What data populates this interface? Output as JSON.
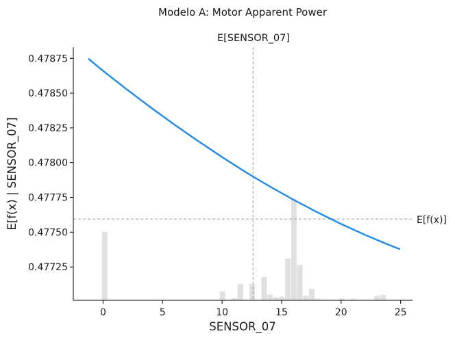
{
  "chart_data": {
    "type": "line",
    "title": "Modelo A: Motor Apparent Power",
    "subtitle": "E[SENSOR_07]",
    "xlabel": "SENSOR_07",
    "ylabel": "E[f(x) | SENSOR_07]",
    "xlim": [
      -2.5,
      26.0
    ],
    "ylim": [
      0.47701,
      0.47883
    ],
    "x_ticks": [
      0,
      5,
      10,
      15,
      20,
      25
    ],
    "y_ticks": [
      0.47725,
      0.4775,
      0.47775,
      0.478,
      0.47825,
      0.4785,
      0.47875
    ],
    "x_tick_labels": [
      "0",
      "5",
      "10",
      "15",
      "20",
      "25"
    ],
    "y_tick_labels": [
      "0.47725",
      "0.47750",
      "0.47775",
      "0.47800",
      "0.47825",
      "0.47850",
      "0.47875"
    ],
    "line": {
      "color": "#1e88e5",
      "x": [
        -1.2,
        0,
        2,
        4,
        6,
        8,
        10,
        12,
        12.6,
        14,
        16,
        18,
        20,
        22,
        24,
        24.9
      ],
      "y": [
        0.478745,
        0.47866,
        0.478526,
        0.478397,
        0.478273,
        0.478154,
        0.47804,
        0.477931,
        0.4779,
        0.477829,
        0.477733,
        0.477643,
        0.477559,
        0.477481,
        0.477409,
        0.477379
      ]
    },
    "vertical_reference": {
      "x": 12.6,
      "label": "E[SENSOR_07]"
    },
    "horizontal_reference": {
      "y": 0.477595,
      "label": "E[f(x)]"
    },
    "histogram": {
      "color": "#e0e0e0",
      "bins": [
        {
          "x0": -0.1,
          "x1": 0.4,
          "height": 0.27
        },
        {
          "x0": 9.8,
          "x1": 10.3,
          "height": 0.035
        },
        {
          "x0": 10.8,
          "x1": 11.3,
          "height": 0.008
        },
        {
          "x0": 11.3,
          "x1": 11.8,
          "height": 0.065
        },
        {
          "x0": 12.3,
          "x1": 12.8,
          "height": 0.065
        },
        {
          "x0": 13.3,
          "x1": 13.8,
          "height": 0.092
        },
        {
          "x0": 13.8,
          "x1": 14.3,
          "height": 0.022
        },
        {
          "x0": 14.3,
          "x1": 14.8,
          "height": 0.012
        },
        {
          "x0": 14.8,
          "x1": 15.3,
          "height": 0.015
        },
        {
          "x0": 15.3,
          "x1": 15.8,
          "height": 0.165
        },
        {
          "x0": 15.8,
          "x1": 16.3,
          "height": 0.402
        },
        {
          "x0": 16.3,
          "x1": 16.8,
          "height": 0.14
        },
        {
          "x0": 16.8,
          "x1": 17.3,
          "height": 0.018
        },
        {
          "x0": 17.3,
          "x1": 17.8,
          "height": 0.045
        },
        {
          "x0": 17.8,
          "x1": 18.3,
          "height": 0.006
        },
        {
          "x0": 19.8,
          "x1": 20.3,
          "height": 0.006
        },
        {
          "x0": 20.8,
          "x1": 21.3,
          "height": 0.005
        },
        {
          "x0": 22.8,
          "x1": 23.3,
          "height": 0.018
        },
        {
          "x0": 23.3,
          "x1": 23.8,
          "height": 0.022
        }
      ]
    },
    "grid": false
  }
}
